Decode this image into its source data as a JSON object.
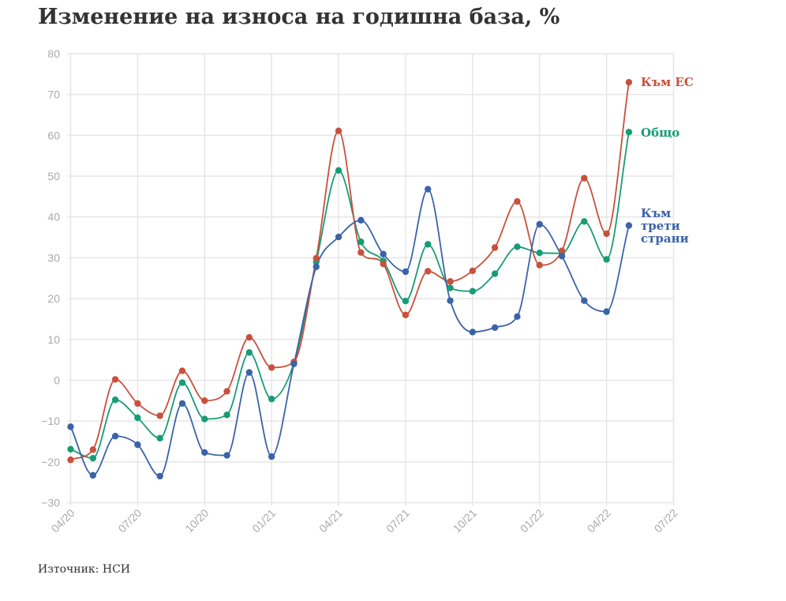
{
  "title": "Изменение на износа на годишна база, %",
  "source": "Източник: НСИ",
  "chart_data": {
    "type": "line",
    "title": "Изменение на износа на годишна база, %",
    "xlabel": "",
    "ylabel": "",
    "ylim": [
      -30,
      80
    ],
    "yticks": [
      80,
      70,
      60,
      50,
      40,
      30,
      20,
      10,
      0,
      -10,
      -20,
      -30
    ],
    "ytick_labels": [
      "80",
      "70",
      "60",
      "50",
      "40",
      "30",
      "20",
      "10",
      "0",
      "−10",
      "−20",
      "−30"
    ],
    "x_tick_labels": [
      "04/20",
      "07/20",
      "10/20",
      "01/21",
      "04/21",
      "07/21",
      "10/21",
      "01/22",
      "04/22",
      "07/22"
    ],
    "x": [
      "04/20",
      "05/20",
      "06/20",
      "07/20",
      "08/20",
      "09/20",
      "10/20",
      "11/20",
      "12/20",
      "01/21",
      "02/21",
      "03/21",
      "04/21",
      "05/21",
      "06/21",
      "07/21",
      "08/21",
      "09/21",
      "10/21",
      "11/21",
      "12/21",
      "01/22",
      "02/22",
      "03/22",
      "04/22",
      "05/22"
    ],
    "grid": true,
    "legend": "inline labels at right end of lines",
    "series": [
      {
        "name": "Към ЕС",
        "color": "#c8503c",
        "values": [
          -19.5,
          -17,
          0.2,
          -5.7,
          -8.7,
          2.3,
          -5,
          -2.7,
          10.5,
          3.1,
          4.5,
          29.9,
          61.1,
          31.3,
          28.5,
          16,
          26.7,
          24.2,
          26.8,
          32.5,
          43.8,
          28.2,
          31.7,
          49.5,
          35.9,
          73
        ]
      },
      {
        "name": "Общо",
        "color": "#179c74",
        "values": [
          -16.9,
          -19.1,
          -4.8,
          -9.2,
          -14.2,
          -0.6,
          -9.5,
          -8.5,
          6.8,
          -4.6,
          4.2,
          29,
          51.4,
          33.9,
          29.2,
          19.4,
          33.3,
          22.6,
          21.8,
          26.1,
          32.7,
          31.2,
          31.1,
          38.9,
          29.6,
          60.8
        ]
      },
      {
        "name": "Към трети страни",
        "name_lines": [
          "Към",
          "трети",
          "страни"
        ],
        "color": "#3a63a8",
        "values": [
          -11.4,
          -23.3,
          -13.7,
          -15.8,
          -23.5,
          -5.7,
          -17.7,
          -18.4,
          1.9,
          -18.7,
          4,
          27.8,
          35.1,
          39.2,
          30.9,
          26.6,
          46.8,
          19.5,
          11.8,
          12.9,
          15.6,
          38.2,
          30.4,
          19.5,
          16.8,
          37.9
        ]
      }
    ]
  }
}
